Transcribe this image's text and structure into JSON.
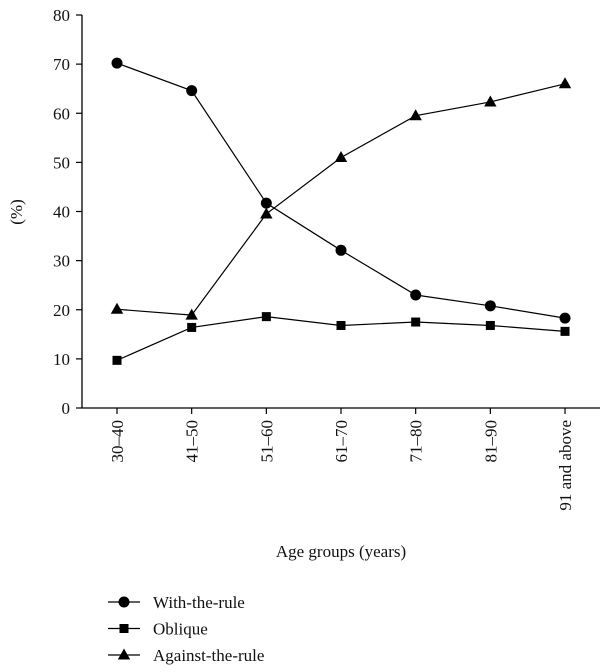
{
  "chart_data": {
    "type": "line",
    "title": "",
    "xlabel": "Age groups (years)",
    "ylabel": "(%)",
    "ylim": [
      0,
      80
    ],
    "yticks": [
      0,
      10,
      20,
      30,
      40,
      50,
      60,
      70,
      80
    ],
    "categories": [
      "30–40",
      "41–50",
      "51–60",
      "61–70",
      "71–80",
      "81–90",
      "91 and above"
    ],
    "grid": false,
    "legend_position": "bottom-left",
    "series": [
      {
        "name": "With-the-rule",
        "marker": "circle",
        "values": [
          70.2,
          64.6,
          41.7,
          32.1,
          23.0,
          20.8,
          18.3
        ]
      },
      {
        "name": "Oblique",
        "marker": "square",
        "values": [
          9.7,
          16.4,
          18.6,
          16.8,
          17.5,
          16.8,
          15.6
        ]
      },
      {
        "name": "Against-the-rule",
        "marker": "triangle",
        "values": [
          20.1,
          18.9,
          39.5,
          51.0,
          59.5,
          62.3,
          66.0
        ]
      }
    ]
  }
}
